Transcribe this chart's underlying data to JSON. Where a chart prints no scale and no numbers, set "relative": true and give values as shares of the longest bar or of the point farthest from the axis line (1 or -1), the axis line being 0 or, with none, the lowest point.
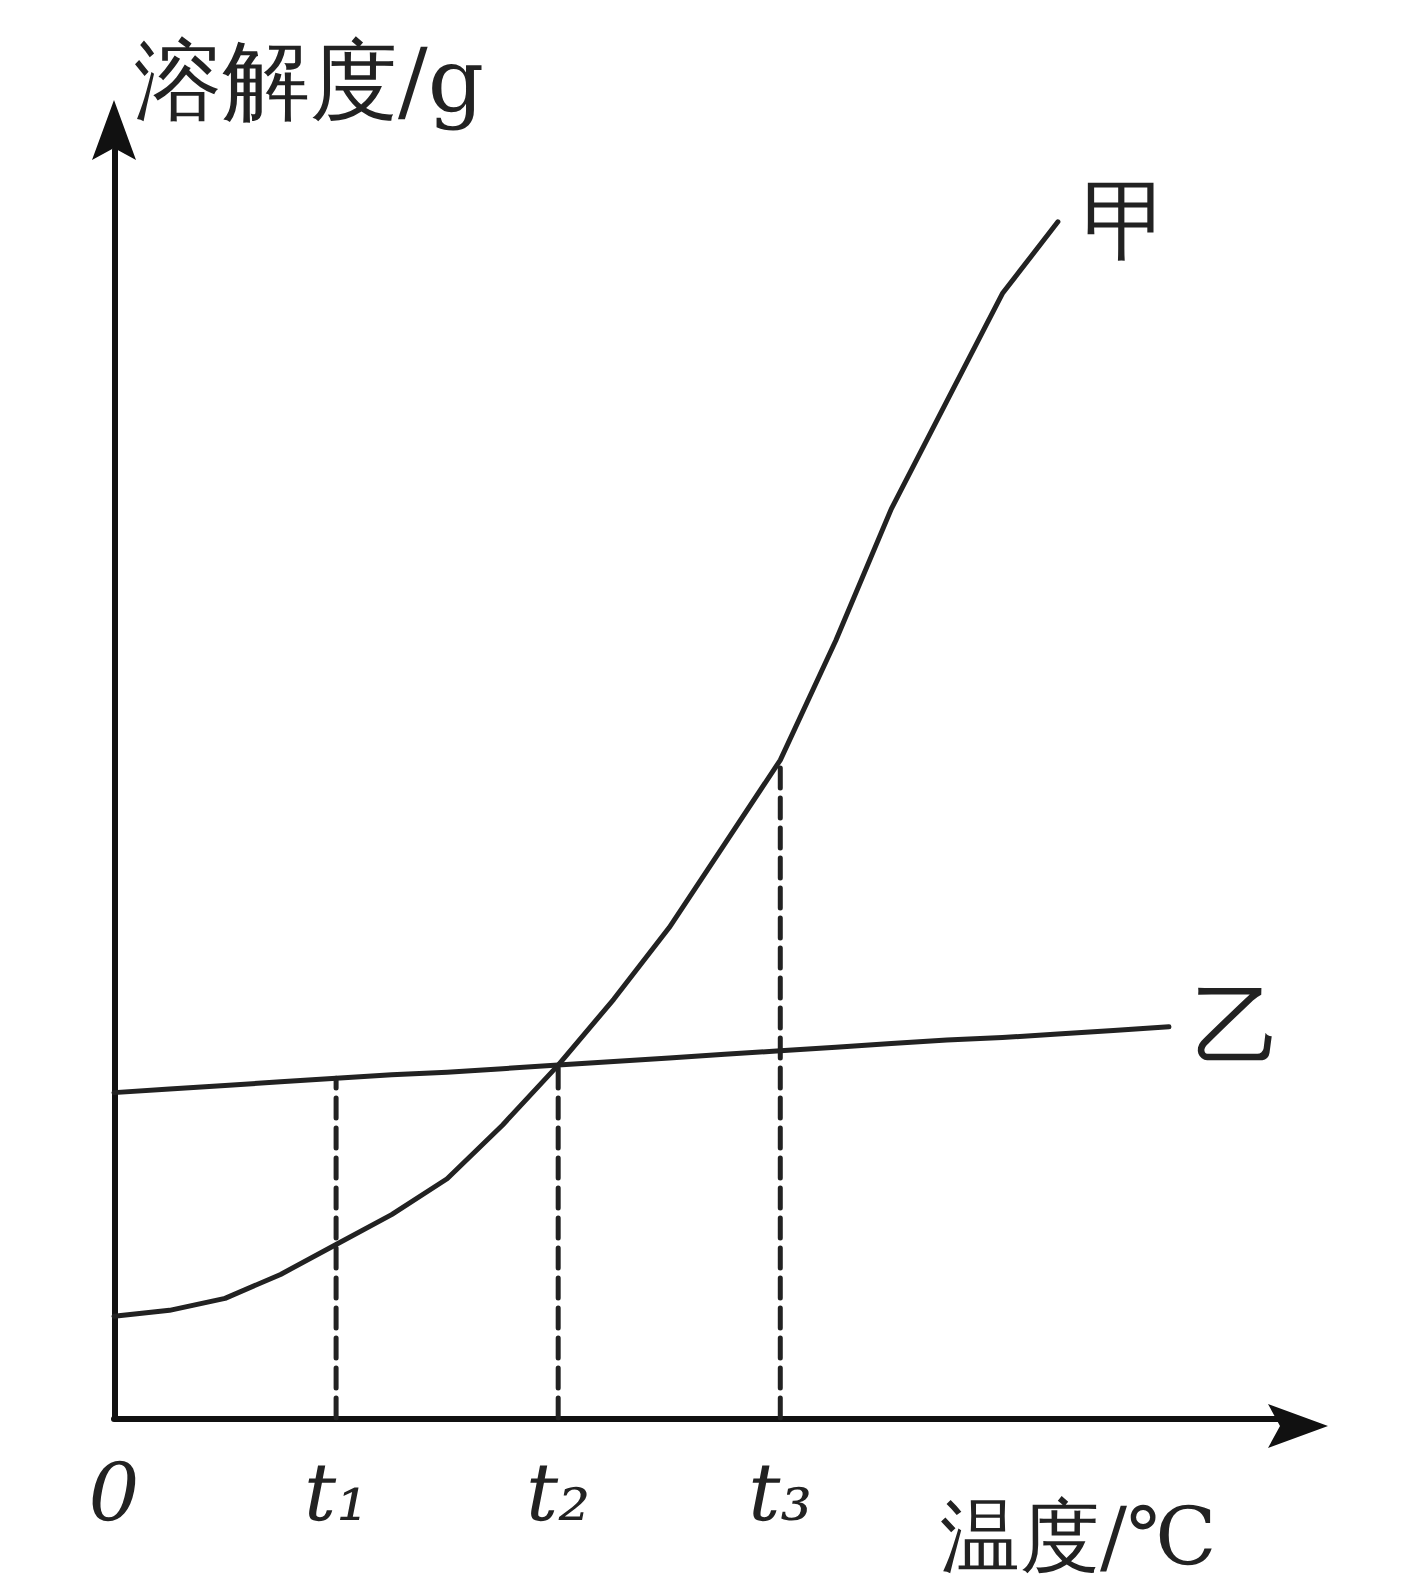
{
  "chart_data": {
    "type": "line",
    "relative": true,
    "xlabel": "温度/℃",
    "ylabel": "溶解度/g",
    "categories": [
      "0",
      null,
      null,
      null,
      "t₁",
      null,
      null,
      null,
      "t₂",
      null,
      null,
      null,
      "t₃",
      null,
      null,
      null,
      null,
      null,
      null,
      null,
      null,
      null
    ],
    "tick_labels": "x",
    "grid": false,
    "legend": false,
    "marker": "none",
    "series": [
      {
        "name": "甲",
        "color": "#222222",
        "line_style": "solid",
        "values": [
          0.085,
          0.09,
          0.1,
          0.12,
          0.145,
          0.17,
          0.2,
          0.245,
          0.295,
          0.35,
          0.41,
          0.48,
          0.55,
          0.65,
          0.76,
          0.85,
          0.94,
          1,
          null,
          null,
          null,
          null
        ]
      },
      {
        "name": "乙",
        "color": "#222222",
        "line_style": "solid",
        "values": [
          0.272,
          0.275,
          0.278,
          0.281,
          0.284,
          0.287,
          0.289,
          0.292,
          0.295,
          0.298,
          0.301,
          0.304,
          0.307,
          0.31,
          0.313,
          0.316,
          0.318,
          0.321,
          0.324,
          0.327,
          null,
          null
        ]
      },
      {
        "color": "#222222",
        "line_style": "dashed",
        "x": [
          "t₁",
          "t₁"
        ],
        "values": [
          0,
          0.284
        ]
      },
      {
        "color": "#222222",
        "line_style": "dashed",
        "x": [
          "t₂",
          "t₂"
        ],
        "values": [
          0,
          0.295
        ]
      },
      {
        "color": "#222222",
        "line_style": "dashed",
        "x": [
          "t₃",
          "t₃"
        ],
        "values": [
          0,
          0.55
        ]
      }
    ]
  }
}
